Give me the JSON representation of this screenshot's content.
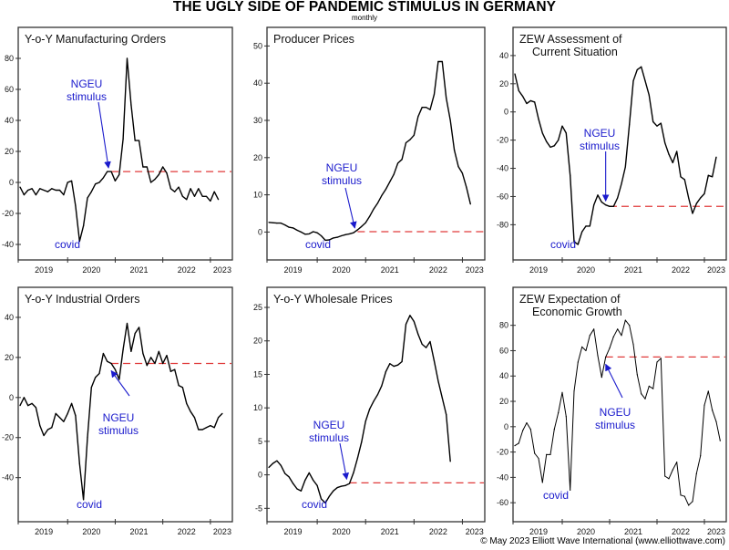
{
  "header": {
    "title": "THE UGLY SIDE OF PANDEMIC STIMULUS IN GERMANY",
    "subtitle": "monthly"
  },
  "footer": {
    "credit": "© May 2023 Elliott Wave International (www.elliottwave.com)"
  },
  "colors": {
    "line": "#000000",
    "reference_dashed": "#e03a3a",
    "annotation": "#1a1acc",
    "frame": "#333333"
  },
  "chart_data": [
    {
      "type": "line",
      "id": "mfg-orders",
      "title": [
        "Y-o-Y Manufacturing Orders"
      ],
      "xlabel": "",
      "ylabel": "",
      "x_start": "2019-01",
      "frequency": "monthly",
      "x_tick_labels": [
        "2019",
        "2020",
        "2021",
        "2022",
        "2023"
      ],
      "y_ticks": [
        80,
        60,
        40,
        20,
        0,
        -20,
        -40
      ],
      "ylim": [
        -50,
        100
      ],
      "values": [
        -3,
        -8,
        -5,
        -4,
        -8,
        -4,
        -5,
        -6,
        -4,
        -5,
        -5,
        -8,
        0,
        1,
        -15,
        -38,
        -28,
        -10,
        -6,
        -1,
        0,
        3,
        7,
        7,
        1,
        5,
        28,
        80,
        50,
        27,
        27,
        10,
        10,
        0,
        2,
        5,
        10,
        6,
        -4,
        -6,
        -3,
        -9,
        -11,
        -4,
        -9,
        -4,
        -9,
        -9,
        -12,
        -6,
        -11
      ],
      "reference_line": {
        "value": 7,
        "from_index": 23,
        "style": "dashed"
      },
      "annotations": [
        {
          "text": [
            "NGEU",
            "stimulus"
          ],
          "points_to_index": 23,
          "kind": "arrow"
        },
        {
          "text": [
            "covid"
          ],
          "near_index": 16,
          "kind": "label"
        }
      ]
    },
    {
      "type": "line",
      "id": "producer-prices",
      "title": [
        "Producer Prices"
      ],
      "xlabel": "",
      "ylabel": "",
      "x_start": "2019-01",
      "frequency": "monthly",
      "x_tick_labels": [
        "2019",
        "2020",
        "2021",
        "2022",
        "2023"
      ],
      "y_ticks": [
        50,
        40,
        30,
        20,
        10,
        0
      ],
      "ylim": [
        -7.5,
        55
      ],
      "values": [
        2.6,
        2.5,
        2.4,
        2.4,
        1.9,
        1.3,
        1.1,
        0.5,
        0,
        -0.6,
        -0.5,
        0.1,
        -0.2,
        -1,
        -2.2,
        -2.1,
        -1.6,
        -1.4,
        -1,
        -0.7,
        -0.5,
        -0.2,
        0.6,
        1.5,
        2.5,
        4.2,
        6.2,
        7.8,
        9.8,
        11.5,
        13.5,
        15.5,
        18.5,
        19.5,
        24,
        24.8,
        26,
        31,
        33.5,
        33.5,
        32.9,
        37,
        45.8,
        45.8,
        36,
        30,
        22,
        17.6,
        15.8,
        12,
        7.5
      ],
      "reference_line": {
        "value": 0.1,
        "from_index": 22,
        "style": "dashed"
      },
      "annotations": [
        {
          "text": [
            "NGEU",
            "stimulus"
          ],
          "points_to_index": 22,
          "kind": "arrow"
        },
        {
          "text": [
            "covid"
          ],
          "near_index": 15,
          "kind": "label"
        }
      ]
    },
    {
      "type": "line",
      "id": "zew-current",
      "title": [
        "ZEW Assessment of",
        "Current Situation"
      ],
      "xlabel": "",
      "ylabel": "",
      "x_start": "2019-01",
      "frequency": "monthly",
      "x_tick_labels": [
        "2019",
        "2020",
        "2021",
        "2022",
        "2023"
      ],
      "y_ticks": [
        40,
        20,
        0,
        -20,
        -40,
        -60,
        -80
      ],
      "ylim": [
        -105,
        60
      ],
      "values": [
        27,
        15,
        11,
        6,
        8,
        7,
        -5,
        -15,
        -21,
        -25,
        -24,
        -20,
        -10,
        -15,
        -45,
        -92,
        -94,
        -85,
        -81,
        -81,
        -66,
        -59,
        -64,
        -66,
        -67,
        -67,
        -61,
        -51,
        -39,
        -9,
        22,
        30,
        32,
        22,
        12,
        -7,
        -10,
        -8,
        -22,
        -30,
        -36,
        -28,
        -46,
        -48,
        -61,
        -72,
        -65,
        -61,
        -58,
        -45,
        -46,
        -32
      ],
      "reference_line": {
        "value": -67,
        "from_index": 24,
        "style": "dashed"
      },
      "annotations": [
        {
          "text": [
            "NGEU",
            "stimulus"
          ],
          "points_to_index": 23,
          "kind": "arrow-down"
        },
        {
          "text": [
            "covid"
          ],
          "near_index": 16,
          "kind": "label"
        }
      ]
    },
    {
      "type": "line",
      "id": "industrial-orders",
      "title": [
        "Y-o-Y Industrial Orders"
      ],
      "xlabel": "",
      "ylabel": "",
      "x_start": "2019-01",
      "frequency": "monthly",
      "x_tick_labels": [
        "2019",
        "2020",
        "2021",
        "2022",
        "2023"
      ],
      "y_ticks": [
        40,
        20,
        0,
        -20,
        -40
      ],
      "ylim": [
        -62,
        55
      ],
      "values": [
        -4,
        0,
        -4,
        -3,
        -5,
        -14,
        -19,
        -16,
        -15,
        -8,
        -10,
        -12,
        -8,
        -3,
        -9,
        -33,
        -51,
        -20,
        5,
        10,
        12,
        22,
        18,
        17,
        14,
        9,
        24,
        37,
        23,
        32,
        35,
        22,
        16,
        20,
        17,
        23,
        17,
        21,
        13,
        14,
        6,
        5,
        -3,
        -7,
        -10,
        -16,
        -16,
        -15,
        -14,
        -15,
        -10,
        -8
      ],
      "reference_line": {
        "value": 17,
        "from_index": 23,
        "style": "dashed"
      },
      "annotations": [
        {
          "text": [
            "NGEU",
            "stimulus"
          ],
          "points_to_index": 23,
          "kind": "arrow-up"
        },
        {
          "text": [
            "covid"
          ],
          "near_index": 16,
          "kind": "label"
        }
      ]
    },
    {
      "type": "line",
      "id": "wholesale-prices",
      "title": [
        "Y-o-Y Wholesale Prices"
      ],
      "xlabel": "",
      "ylabel": "",
      "x_start": "2019-01",
      "frequency": "monthly",
      "x_tick_labels": [
        "2019",
        "2020",
        "2021",
        "2022",
        "2023"
      ],
      "y_ticks": [
        25,
        20,
        15,
        10,
        5,
        0,
        -5
      ],
      "ylim": [
        -7,
        28
      ],
      "values": [
        1.1,
        1.7,
        2.1,
        1.4,
        0.2,
        -0.3,
        -1.3,
        -2.1,
        -2.4,
        -0.8,
        0.3,
        -0.8,
        -1.6,
        -3.6,
        -4.2,
        -3.2,
        -2.4,
        -1.9,
        -1.7,
        -1.6,
        -1.3,
        0.3,
        2.5,
        4.9,
        8,
        9.8,
        11,
        12,
        13.3,
        15.4,
        16.6,
        16.2,
        16.4,
        16.9,
        22.5,
        23.8,
        22.9,
        21,
        19.5,
        19,
        19.9,
        17,
        14,
        11.5,
        9,
        2
      ],
      "reference_line": {
        "value": -1.2,
        "from_index": 20,
        "style": "dashed"
      },
      "annotations": [
        {
          "text": [
            "NGEU",
            "stimulus"
          ],
          "points_to_index": 20,
          "kind": "arrow"
        },
        {
          "text": [
            "covid"
          ],
          "near_index": 14,
          "kind": "label"
        }
      ]
    },
    {
      "type": "line",
      "id": "zew-expectation",
      "title": [
        "ZEW Expectation of",
        "Economic Growth"
      ],
      "xlabel": "",
      "ylabel": "",
      "x_start": "2019-01",
      "frequency": "monthly",
      "x_tick_labels": [
        "2019",
        "2020",
        "2021",
        "2022",
        "2023"
      ],
      "y_ticks": [
        80,
        60,
        40,
        20,
        0,
        -20,
        -40,
        -60
      ],
      "ylim": [
        -75,
        110
      ],
      "values": [
        -15,
        -13,
        -3,
        3,
        -2,
        -21,
        -25,
        -44,
        -22,
        -22,
        -2,
        11,
        27,
        8,
        -50,
        28,
        51,
        63,
        60,
        72,
        77,
        56,
        39,
        55,
        62,
        71,
        77,
        72,
        84,
        80,
        65,
        41,
        26,
        22,
        32,
        30,
        51,
        54,
        -39,
        -41,
        -34,
        -28,
        -54,
        -55,
        -62,
        -59,
        -37,
        -23,
        17,
        28,
        13,
        4,
        -11
      ],
      "reference_line": {
        "value": 55,
        "from_index": 23,
        "style": "dashed"
      },
      "annotations": [
        {
          "text": [
            "NGEU",
            "stimulus"
          ],
          "points_to_index": 23,
          "kind": "arrow-up"
        },
        {
          "text": [
            "covid"
          ],
          "near_index": 15,
          "kind": "label"
        }
      ]
    }
  ]
}
